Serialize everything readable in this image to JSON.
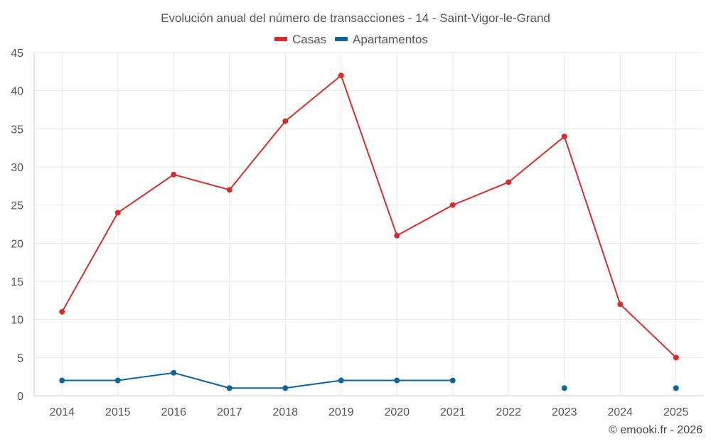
{
  "chart_data": {
    "type": "line",
    "title": "Evolución anual del número de transacciones - 14 - Saint-Vigor-le-Grand",
    "categories": [
      "2014",
      "2015",
      "2016",
      "2017",
      "2018",
      "2019",
      "2020",
      "2021",
      "2022",
      "2023",
      "2024",
      "2025"
    ],
    "ylim": [
      0,
      45
    ],
    "yticks": [
      0,
      5,
      10,
      15,
      20,
      25,
      30,
      35,
      40,
      45
    ],
    "grid": true,
    "legend_position": "top-center",
    "series": [
      {
        "name": "Casas",
        "color": "#d32f2f",
        "values": [
          11,
          24,
          29,
          27,
          36,
          42,
          21,
          25,
          28,
          34,
          12,
          5
        ]
      },
      {
        "name": "Apartamentos",
        "color": "#0d6599",
        "values": [
          2,
          2,
          3,
          1,
          1,
          2,
          2,
          2,
          null,
          1,
          null,
          1
        ]
      }
    ]
  },
  "credit": "© emooki.fr - 2026"
}
